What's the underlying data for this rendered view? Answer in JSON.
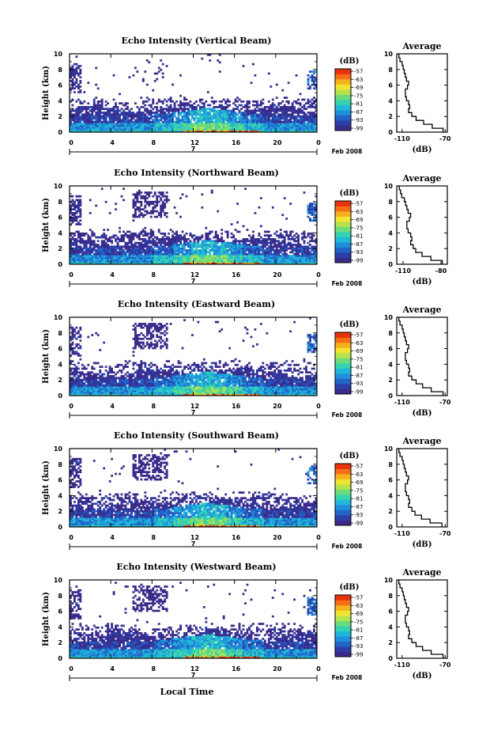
{
  "colormap": [
    "#3b2a8a",
    "#2c3fa8",
    "#2364c7",
    "#1f8fdc",
    "#20b8d8",
    "#35d2b0",
    "#6bdc7c",
    "#b6e24c",
    "#f2e431",
    "#f6b21d",
    "#f46f16",
    "#e8320e"
  ],
  "common": {
    "xtick_labels": [
      "0",
      "4",
      "8",
      "12",
      "16",
      "20",
      "0"
    ],
    "ytick_labels": [
      "0",
      "2",
      "4",
      "6",
      "8",
      "10"
    ],
    "ylabel": "Height (km)",
    "day_label": "7",
    "date_label": "Feb 2008",
    "colorbar_unit": "(dB)",
    "colorbar_ticks": [
      "-57",
      "-63",
      "-69",
      "-75",
      "-81",
      "-87",
      "-93",
      "-99"
    ],
    "avg_title": "Average",
    "avg_unit": "(dB)",
    "avg_ytick_labels": [
      "0",
      "2",
      "4",
      "6",
      "8",
      "10"
    ],
    "xlabel": "Local Time"
  },
  "chart_data": [
    {
      "type": "heatmap",
      "title": "Echo Intensity (Vertical Beam)",
      "x_label": "Local Time",
      "y_label": "Height (km)",
      "x_range": [
        0,
        24
      ],
      "y_range": [
        0,
        10
      ],
      "colorbar_range_db": [
        -99,
        -57
      ],
      "avg_xticks": [
        "-110",
        "-70"
      ],
      "avg_xrange": [
        -115,
        -68
      ],
      "average_profile": {
        "height_km": [
          0,
          0.5,
          1,
          1.5,
          2,
          2.5,
          3,
          3.5,
          4,
          4.5,
          5,
          5.5,
          6,
          6.5,
          7,
          7.5,
          8,
          8.5,
          9,
          9.5
        ],
        "db": [
          -72,
          -82,
          -90,
          -97,
          -101,
          -104,
          -103,
          -104,
          -106,
          -107,
          -107,
          -105,
          -104,
          -106,
          -107,
          -108,
          -109,
          -110,
          -112,
          -113
        ]
      }
    },
    {
      "type": "heatmap",
      "title": "Echo Intensity (Northward Beam)",
      "x_label": "Local Time",
      "y_label": "Height (km)",
      "x_range": [
        0,
        24
      ],
      "y_range": [
        0,
        10
      ],
      "colorbar_range_db": [
        -99,
        -57
      ],
      "avg_xticks": [
        "-110",
        "-80"
      ],
      "avg_xrange": [
        -115,
        -75
      ],
      "average_profile": {
        "height_km": [
          0,
          0.5,
          1,
          1.5,
          2,
          2.5,
          3,
          3.5,
          4,
          4.5,
          5,
          5.5,
          6,
          6.5,
          7,
          7.5,
          8,
          8.5,
          9,
          9.5
        ],
        "db": [
          -79,
          -88,
          -95,
          -100,
          -102,
          -104,
          -103,
          -104,
          -106,
          -107,
          -107,
          -105,
          -104,
          -106,
          -107,
          -108,
          -109,
          -111,
          -112,
          -113
        ]
      }
    },
    {
      "type": "heatmap",
      "title": "Echo Intensity (Eastward Beam)",
      "x_label": "Local Time",
      "y_label": "Height (km)",
      "x_range": [
        0,
        24
      ],
      "y_range": [
        0,
        10
      ],
      "colorbar_range_db": [
        -99,
        -57
      ],
      "avg_xticks": [
        "-110",
        "-70"
      ],
      "avg_xrange": [
        -115,
        -68
      ],
      "average_profile": {
        "height_km": [
          0,
          0.5,
          1,
          1.5,
          2,
          2.5,
          3,
          3.5,
          4,
          4.5,
          5,
          5.5,
          6,
          6.5,
          7,
          7.5,
          8,
          8.5,
          9,
          9.5
        ],
        "db": [
          -72,
          -83,
          -91,
          -97,
          -101,
          -104,
          -103,
          -104,
          -106,
          -107,
          -107,
          -105,
          -104,
          -106,
          -107,
          -108,
          -109,
          -110,
          -112,
          -113
        ]
      }
    },
    {
      "type": "heatmap",
      "title": "Echo Intensity (Southward Beam)",
      "x_label": "Local Time",
      "y_label": "Height (km)",
      "x_range": [
        0,
        24
      ],
      "y_range": [
        0,
        10
      ],
      "colorbar_range_db": [
        -99,
        -57
      ],
      "avg_xticks": [
        "-110",
        "-70"
      ],
      "avg_xrange": [
        -115,
        -68
      ],
      "average_profile": {
        "height_km": [
          0,
          0.5,
          1,
          1.5,
          2,
          2.5,
          3,
          3.5,
          4,
          4.5,
          5,
          5.5,
          6,
          6.5,
          7,
          7.5,
          8,
          8.5,
          9,
          9.5
        ],
        "db": [
          -73,
          -84,
          -92,
          -98,
          -101,
          -104,
          -103,
          -104,
          -106,
          -107,
          -107,
          -105,
          -104,
          -106,
          -107,
          -108,
          -109,
          -110,
          -112,
          -113
        ]
      }
    },
    {
      "type": "heatmap",
      "title": "Echo Intensity (Westward Beam)",
      "x_label": "Local Time",
      "y_label": "Height (km)",
      "x_range": [
        0,
        24
      ],
      "y_range": [
        0,
        10
      ],
      "colorbar_range_db": [
        -99,
        -57
      ],
      "avg_xticks": [
        "-110",
        "-70"
      ],
      "avg_xrange": [
        -115,
        -68
      ],
      "average_profile": {
        "height_km": [
          0,
          0.5,
          1,
          1.5,
          2,
          2.5,
          3,
          3.5,
          4,
          4.5,
          5,
          5.5,
          6,
          6.5,
          7,
          7.5,
          8,
          8.5,
          9,
          9.5
        ],
        "db": [
          -72,
          -83,
          -91,
          -97,
          -101,
          -104,
          -103,
          -104,
          -106,
          -107,
          -107,
          -105,
          -104,
          -106,
          -107,
          -108,
          -109,
          -110,
          -112,
          -113
        ]
      }
    }
  ]
}
